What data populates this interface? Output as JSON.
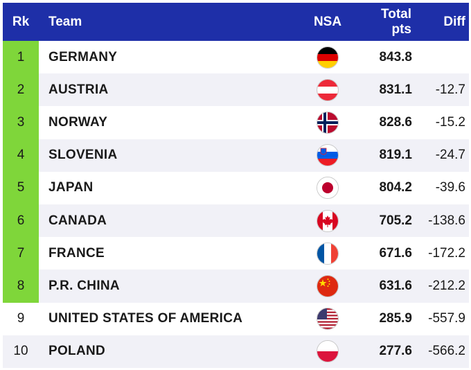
{
  "header": {
    "rank": "Rk",
    "team": "Team",
    "nsa": "NSA",
    "total_line1": "Total",
    "total_line2": "pts",
    "diff": "Diff"
  },
  "colors": {
    "header_bg": "#1e2fa8",
    "qualified": "#7fd63a",
    "row_alt": "#f1f1f7"
  },
  "rows": [
    {
      "rank": "1",
      "team": "GERMANY",
      "flag": "germany-flag-icon",
      "pts": "843.8",
      "diff": "",
      "qualified": true
    },
    {
      "rank": "2",
      "team": "AUSTRIA",
      "flag": "austria-flag-icon",
      "pts": "831.1",
      "diff": "-12.7",
      "qualified": true
    },
    {
      "rank": "3",
      "team": "NORWAY",
      "flag": "norway-flag-icon",
      "pts": "828.6",
      "diff": "-15.2",
      "qualified": true
    },
    {
      "rank": "4",
      "team": "SLOVENIA",
      "flag": "slovenia-flag-icon",
      "pts": "819.1",
      "diff": "-24.7",
      "qualified": true
    },
    {
      "rank": "5",
      "team": "JAPAN",
      "flag": "japan-flag-icon",
      "pts": "804.2",
      "diff": "-39.6",
      "qualified": true
    },
    {
      "rank": "6",
      "team": "CANADA",
      "flag": "canada-flag-icon",
      "pts": "705.2",
      "diff": "-138.6",
      "qualified": true
    },
    {
      "rank": "7",
      "team": "FRANCE",
      "flag": "france-flag-icon",
      "pts": "671.6",
      "diff": "-172.2",
      "qualified": true
    },
    {
      "rank": "8",
      "team": "P.R. CHINA",
      "flag": "china-flag-icon",
      "pts": "631.6",
      "diff": "-212.2",
      "qualified": true
    },
    {
      "rank": "9",
      "team": "UNITED STATES OF AMERICA",
      "flag": "usa-flag-icon",
      "pts": "285.9",
      "diff": "-557.9",
      "qualified": false
    },
    {
      "rank": "10",
      "team": "POLAND",
      "flag": "poland-flag-icon",
      "pts": "277.6",
      "diff": "-566.2",
      "qualified": false
    }
  ]
}
